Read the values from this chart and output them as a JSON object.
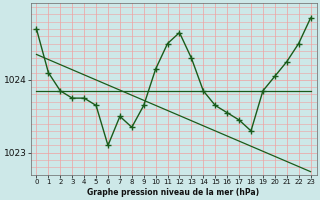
{
  "title": "Graphe pression niveau de la mer (hPa)",
  "background_color": "#cde8e8",
  "grid_color_v": "#f0a0a0",
  "grid_color_h": "#f0a0a0",
  "line_color": "#1a5c1a",
  "x_labels": [
    "0",
    "1",
    "2",
    "3",
    "4",
    "5",
    "6",
    "7",
    "8",
    "9",
    "10",
    "11",
    "12",
    "13",
    "14",
    "15",
    "16",
    "17",
    "18",
    "19",
    "20",
    "21",
    "22",
    "23"
  ],
  "hours": [
    0,
    1,
    2,
    3,
    4,
    5,
    6,
    7,
    8,
    9,
    10,
    11,
    12,
    13,
    14,
    15,
    16,
    17,
    18,
    19,
    20,
    21,
    22,
    23
  ],
  "series1": [
    1024.7,
    1024.1,
    1023.85,
    1023.75,
    1023.75,
    1023.65,
    1023.1,
    1023.5,
    1023.35,
    1023.65,
    1024.15,
    1024.5,
    1024.65,
    1024.3,
    1023.85,
    1023.65,
    1023.55,
    1023.45,
    1023.3,
    1023.85,
    1024.05,
    1024.25,
    1024.5,
    1024.85
  ],
  "trend_flat": [
    1023.85,
    1023.85,
    1023.85,
    1023.85,
    1023.85,
    1023.85,
    1023.85,
    1023.85,
    1023.85,
    1023.85,
    1023.85,
    1023.85,
    1023.85,
    1023.85,
    1023.85,
    1023.85,
    1023.85,
    1023.85,
    1023.85,
    1023.85,
    1023.85,
    1023.85,
    1023.85,
    1023.85
  ],
  "trend_diag": [
    1024.35,
    1024.28,
    1024.21,
    1024.14,
    1024.07,
    1024.0,
    1023.93,
    1023.86,
    1023.79,
    1023.72,
    1023.65,
    1023.58,
    1023.51,
    1023.44,
    1023.37,
    1023.3,
    1023.23,
    1023.16,
    1023.09,
    1023.02,
    1022.95,
    1022.88,
    1022.81,
    1022.74
  ],
  "ylim_min": 1022.7,
  "ylim_max": 1025.05,
  "yticks": [
    1023.0,
    1024.0
  ],
  "ytick_labels": [
    "1023",
    "1024"
  ],
  "title_fontsize": 5.5,
  "tick_fontsize": 5.0
}
